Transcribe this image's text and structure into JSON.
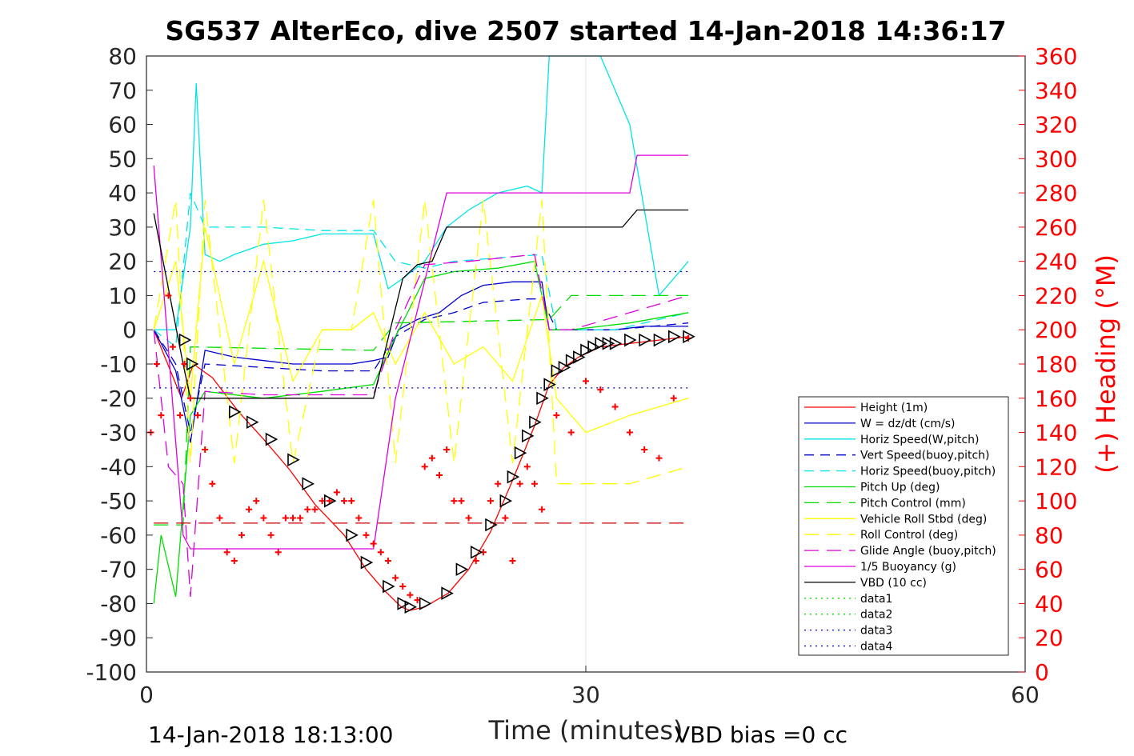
{
  "chart_data": {
    "type": "line",
    "title": "SG537 AlterEco, dive 2507 started 14-Jan-2018 14:36:17",
    "xlabel": "Time (minutes)",
    "ylabel_right": "(+) Heading (°M)",
    "xlim": [
      0,
      60
    ],
    "ylim": [
      -100,
      80
    ],
    "ylim_right": [
      0,
      360
    ],
    "xticks": [
      "0",
      "30",
      "60"
    ],
    "yticks": [
      "80",
      "70",
      "60",
      "50",
      "40",
      "30",
      "20",
      "10",
      "0",
      "-10",
      "-20",
      "-30",
      "-40",
      "-50",
      "-60",
      "-70",
      "-80",
      "-90",
      "-100"
    ],
    "yticks_right": [
      "360",
      "340",
      "320",
      "300",
      "280",
      "260",
      "240",
      "220",
      "200",
      "180",
      "160",
      "140",
      "120",
      "100",
      "80",
      "60",
      "40",
      "20",
      "0"
    ],
    "footer_left": "14-Jan-2018 18:13:00",
    "footer_right": "VBD bias =0 cc",
    "grid": "x-only-at-30",
    "legend_position": "right",
    "colors": {
      "height": "#ff0000",
      "w": "#0000cc",
      "horiz_speed": "#00e5e5",
      "pitch": "#00dd00",
      "roll": "#ffff00",
      "glide": "#dd00dd",
      "buoyancy": "#dd00dd",
      "vbd": "#000000",
      "heading": "#ff0000",
      "axis_right": "#ff0000"
    },
    "series": [
      {
        "name": "Height (1m)",
        "color": "#ff0000",
        "dash": "",
        "x": [
          0.5,
          2.4,
          3.2,
          4.5,
          6.3,
          8.0,
          9.8,
          11.5,
          13.5,
          15.0,
          16.2,
          17.4,
          18.0,
          19.0,
          20.6,
          22.0,
          23.5,
          25.0,
          26.5,
          27.5,
          28.5,
          29.5,
          31.0,
          33.0,
          35.0,
          37.0
        ],
        "y": [
          0,
          -20,
          -10,
          -14,
          -24,
          -32,
          -41,
          -51,
          -60,
          -70,
          -76,
          -81,
          -82,
          -81,
          -77,
          -70,
          -59,
          -44,
          -28,
          -16,
          -11,
          -8,
          -5,
          -4,
          -3,
          -2
        ]
      },
      {
        "name": "W = dz/dt (cm/s)",
        "color": "#0000cc",
        "dash": "",
        "x": [
          0.5,
          2.0,
          3.0,
          4.0,
          6.0,
          8.0,
          10.0,
          12.0,
          14.0,
          15.5,
          16.5,
          17.2,
          18.5,
          20.0,
          21.5,
          23.0,
          25.0,
          27.0,
          27.5,
          28.5,
          32.0,
          34.0,
          37.0
        ],
        "y": [
          0,
          -12,
          -33,
          -6,
          -8,
          -9,
          -10,
          -10,
          -10,
          -9,
          -8,
          0,
          3,
          5,
          10,
          13,
          14,
          14,
          0,
          0,
          0,
          1,
          1
        ]
      },
      {
        "name": "Horiz Speed(W,pitch)",
        "color": "#00e5e5",
        "dash": "",
        "x": [
          0.5,
          2.0,
          3.0,
          3.4,
          4.0,
          5.0,
          6.0,
          8.0,
          10.0,
          12.0,
          14.0,
          15.5,
          16.5,
          17.5,
          19.0,
          20.5,
          22.0,
          24.0,
          26.0,
          27.0,
          27.5,
          29.0,
          31.0,
          33.0,
          35.0,
          37.0
        ],
        "y": [
          0,
          0,
          30,
          72,
          22,
          20,
          22,
          25,
          26,
          28,
          28,
          28,
          12,
          15,
          20,
          30,
          35,
          40,
          42,
          40,
          80,
          80,
          80,
          60,
          10,
          20
        ]
      },
      {
        "name": "Vert Speed(buoy,pitch)",
        "color": "#0000cc",
        "dash": "12,8",
        "x": [
          0.5,
          2.0,
          3.0,
          4.0,
          8.0,
          12.0,
          15.5,
          17.0,
          19.0,
          21.0,
          23.0,
          26.0,
          27.0,
          28.0,
          32.0,
          37.0
        ],
        "y": [
          0,
          -10,
          -30,
          -10,
          -11,
          -12,
          -12,
          -2,
          3,
          5,
          8,
          9,
          9,
          0,
          0,
          2
        ]
      },
      {
        "name": "Horiz Speed(buoy,pitch)",
        "color": "#00e5e5",
        "dash": "12,8",
        "x": [
          0.5,
          2.0,
          3.0,
          4.0,
          8.0,
          12.0,
          15.5,
          17.0,
          19.0,
          21.0,
          24.0,
          27.0,
          28.0,
          32.0,
          37.0
        ],
        "y": [
          0,
          -5,
          40,
          30,
          30,
          29,
          29,
          20,
          18,
          20,
          21,
          22,
          0,
          0,
          5
        ]
      },
      {
        "name": "Pitch Up (deg)",
        "color": "#00dd00",
        "dash": "",
        "x": [
          0.5,
          1.0,
          2.0,
          3.0,
          4.0,
          8.0,
          12.0,
          15.5,
          17.0,
          19.0,
          21.0,
          24.0,
          26.5,
          27.5,
          29.0,
          33.0,
          37.0
        ],
        "y": [
          -80,
          -60,
          -78,
          -25,
          -18,
          -20,
          -18,
          -16,
          -2,
          15,
          17,
          18,
          20,
          0,
          0,
          2,
          5
        ]
      },
      {
        "name": "Pitch Control (mm)",
        "color": "#00dd00",
        "dash": "18,10",
        "x": [
          0.5,
          2.5,
          3.0,
          15.5,
          17.0,
          27.5,
          29.0,
          37.0
        ],
        "y": [
          -57,
          -57,
          -5,
          -6,
          2,
          3,
          10,
          10
        ]
      },
      {
        "name": "Vehicle Roll Stbd (deg)",
        "color": "#ffff00",
        "dash": "",
        "x": [
          0.5,
          2.0,
          3.0,
          4.0,
          6.0,
          8.0,
          10.0,
          12.0,
          14.0,
          15.5,
          17.0,
          19.0,
          21.0,
          23.0,
          25.0,
          27.0,
          28.0,
          30.0,
          33.0,
          37.0
        ],
        "y": [
          0,
          20,
          -20,
          30,
          -10,
          20,
          -15,
          0,
          0,
          5,
          -10,
          5,
          -10,
          -5,
          -15,
          10,
          -20,
          -30,
          -25,
          -20
        ]
      },
      {
        "name": "Roll Control (deg)",
        "color": "#ffff00",
        "dash": "18,10",
        "x": [
          0.5,
          2.0,
          3.0,
          4.0,
          6.0,
          8.0,
          10.0,
          12.0,
          14.0,
          15.5,
          17.0,
          19.0,
          21.0,
          23.0,
          25.0,
          27.0,
          28.0,
          30.0,
          33.0,
          37.0
        ],
        "y": [
          0,
          38,
          -39,
          38,
          -39,
          38,
          -39,
          0,
          0,
          38,
          -39,
          38,
          -39,
          38,
          -39,
          38,
          -45,
          -45,
          -45,
          -40
        ]
      },
      {
        "name": "Glide Angle (buoy,pitch)",
        "color": "#dd00dd",
        "dash": "18,10",
        "x": [
          0.5,
          1.5,
          2.5,
          3.0,
          4.0,
          8.0,
          12.0,
          15.5,
          17.0,
          19.0,
          22.0,
          26.5,
          27.5,
          29.0,
          37.0
        ],
        "y": [
          0,
          -40,
          -45,
          -78,
          -18,
          -19,
          -19,
          -19,
          0,
          19,
          20,
          22,
          0,
          0,
          10
        ]
      },
      {
        "name": "1/5 Buoyancy (g)",
        "color": "#dd00dd",
        "dash": "",
        "x": [
          0.5,
          2.5,
          3.0,
          15.5,
          17.0,
          20.5,
          33.0,
          33.5,
          37.0
        ],
        "y": [
          48,
          -60,
          -64,
          -64,
          -20,
          40,
          40,
          51,
          51
        ]
      },
      {
        "name": "VBD (10 cc)",
        "color": "#000000",
        "dash": "",
        "x": [
          0.5,
          2.5,
          3.0,
          15.5,
          17.5,
          18.5,
          19.5,
          20.5,
          32.5,
          33.5,
          37.0
        ],
        "y": [
          34,
          -10,
          -20,
          -20,
          15,
          19,
          20,
          30,
          30,
          35,
          35
        ]
      },
      {
        "name": "data1",
        "color": "#00dd00",
        "dash": "2,5",
        "x": [],
        "y": []
      },
      {
        "name": "data2",
        "color": "#00dd00",
        "dash": "2,5",
        "x": [],
        "y": []
      },
      {
        "name": "data3",
        "color": "#0000aa",
        "dash": "2,5",
        "x": [
          0.5,
          37.0
        ],
        "y": [
          17,
          17
        ]
      },
      {
        "name": "data4",
        "color": "#0000aa",
        "dash": "2,5",
        "x": [
          0.5,
          37.0
        ],
        "y": [
          -17,
          -17
        ]
      }
    ],
    "extra_lines": [
      {
        "color": "#cc0000",
        "dash": "18,10",
        "x": [
          0.5,
          37.0
        ],
        "y": [
          -56.5,
          -56.5
        ]
      }
    ],
    "heading_points": {
      "axis": "right",
      "marker": "+",
      "color": "#ff0000",
      "x": [
        0.3,
        0.7,
        1.0,
        1.5,
        1.8,
        2.3,
        2.6,
        3.0,
        3.5,
        4.0,
        4.5,
        5.0,
        5.5,
        6.0,
        6.5,
        7.0,
        7.5,
        8.0,
        8.5,
        9.0,
        9.5,
        10.0,
        10.5,
        11.0,
        11.5,
        12.0,
        12.5,
        13.0,
        13.5,
        14.0,
        14.5,
        15.0,
        15.5,
        16.0,
        16.5,
        17.0,
        17.5,
        18.0,
        18.5,
        19.0,
        19.5,
        20.0,
        20.5,
        21.0,
        21.5,
        22.0,
        22.5,
        23.0,
        23.5,
        24.0,
        24.5,
        25.0,
        25.5,
        26.0,
        26.5,
        27.0,
        28.0,
        29.0,
        30.0,
        31.0,
        32.0,
        33.0,
        34.0,
        35.0,
        36.0,
        37.0
      ],
      "y": [
        140,
        180,
        150,
        220,
        190,
        150,
        180,
        160,
        150,
        130,
        110,
        90,
        70,
        65,
        80,
        95,
        100,
        90,
        80,
        70,
        90,
        90,
        90,
        95,
        95,
        100,
        100,
        105,
        100,
        100,
        90,
        80,
        75,
        70,
        65,
        55,
        50,
        45,
        42,
        120,
        125,
        115,
        130,
        100,
        100,
        90,
        65,
        70,
        100,
        110,
        90,
        65,
        110,
        120,
        110,
        95,
        150,
        140,
        170,
        165,
        155,
        140,
        130,
        125,
        160,
        195
      ]
    },
    "triangle_markers": {
      "color": "#000000",
      "x": [
        2.6,
        3.1,
        6.0,
        7.2,
        8.5,
        10.0,
        11.0,
        12.5,
        14.0,
        15.0,
        16.5,
        17.5,
        18.0,
        19.0,
        20.5,
        21.5,
        22.5,
        23.5,
        24.5,
        25.0,
        25.5,
        26.0,
        26.5,
        27.0,
        27.5,
        28.0,
        28.5,
        29.0,
        29.5,
        30.0,
        30.5,
        31.0,
        31.5,
        32.0,
        33.0,
        34.0,
        35.0,
        36.0,
        37.0
      ],
      "y": [
        -3,
        -10,
        -24,
        -27,
        -32,
        -38,
        -45,
        -50,
        -60,
        -68,
        -75,
        -80,
        -81,
        -80,
        -77,
        -70,
        -65,
        -57,
        -50,
        -43,
        -36,
        -31,
        -27,
        -20,
        -16,
        -12,
        -11,
        -9,
        -8,
        -6,
        -5,
        -4,
        -4,
        -4,
        -3,
        -3,
        -3,
        -2,
        -2
      ]
    }
  }
}
